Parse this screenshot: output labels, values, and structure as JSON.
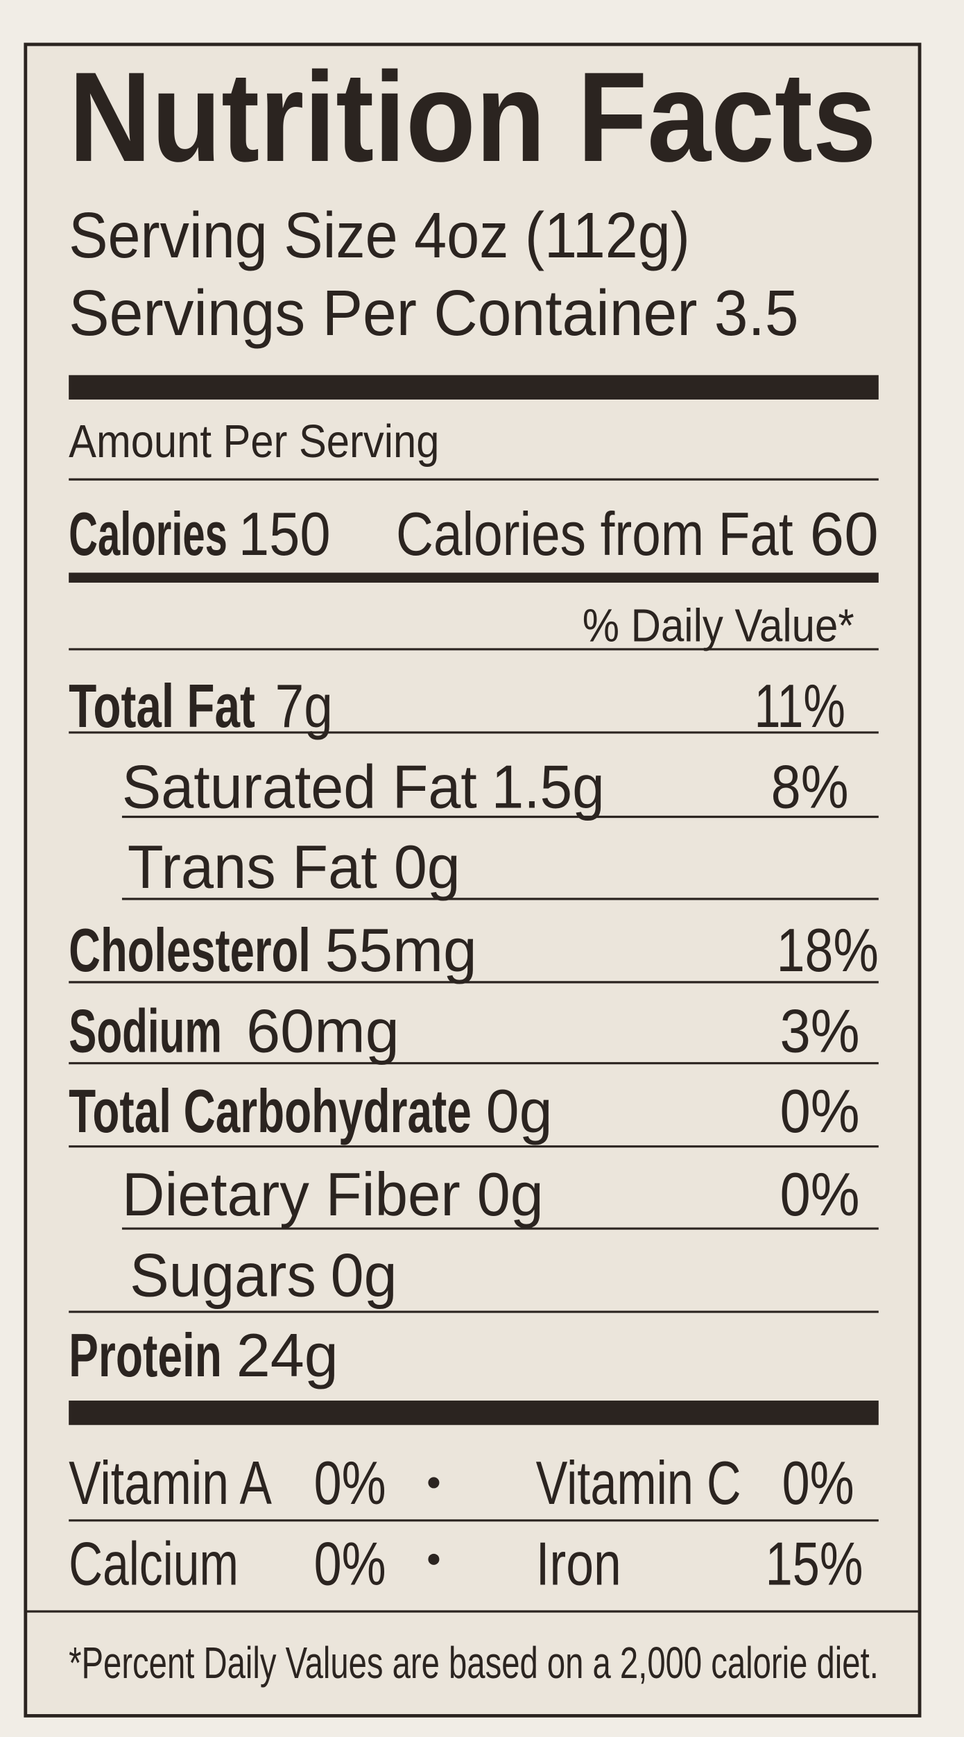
{
  "title": "Nutrition Facts",
  "serving_size": "Serving Size 4oz (112g)",
  "servings_per_container": "Servings Per Container 3.5",
  "amount_per_serving": "Amount Per Serving",
  "calories": {
    "label": "Calories",
    "value": "150",
    "from_fat_label": "Calories from Fat",
    "from_fat_value": "60"
  },
  "daily_value_header": "% Daily Value*",
  "rows": [
    {
      "name": "Total Fat",
      "amount": "7g",
      "daily_value": "11%"
    },
    {
      "name": "Saturated Fat",
      "amount": "1.5g",
      "daily_value": "8%"
    },
    {
      "name": "Trans Fat",
      "amount": "0g"
    },
    {
      "name": "Cholesterol",
      "amount": "55mg",
      "daily_value": "18%"
    },
    {
      "name": "Sodium",
      "amount": "60mg",
      "daily_value": "3%"
    },
    {
      "name": "Total Carbohydrate",
      "amount": "0g",
      "daily_value": "0%"
    },
    {
      "name": "Dietary Fiber",
      "amount": "0g",
      "daily_value": "0%"
    },
    {
      "name": "Sugars",
      "amount": "0g"
    },
    {
      "name": "Protein",
      "amount": "24g"
    }
  ],
  "vitamins": [
    {
      "name": "Vitamin A",
      "value": "0%"
    },
    {
      "name": "Vitamin C",
      "value": "0%"
    },
    {
      "name": "Calcium",
      "value": "0%"
    },
    {
      "name": "Iron",
      "value": "15%"
    }
  ],
  "footnote": "*Percent Daily Values are based on a 2,000 calorie diet."
}
